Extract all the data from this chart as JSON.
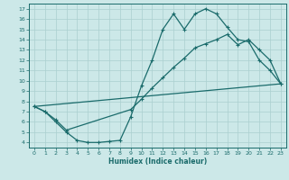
{
  "title": "",
  "xlabel": "Humidex (Indice chaleur)",
  "ylabel": "",
  "bg_color": "#cce8e8",
  "line_color": "#1a6b6b",
  "grid_color": "#aacfcf",
  "xlim": [
    -0.5,
    23.5
  ],
  "ylim": [
    3.5,
    17.5
  ],
  "xticks": [
    0,
    1,
    2,
    3,
    4,
    5,
    6,
    7,
    8,
    9,
    10,
    11,
    12,
    13,
    14,
    15,
    16,
    17,
    18,
    19,
    20,
    21,
    22,
    23
  ],
  "yticks": [
    4,
    5,
    6,
    7,
    8,
    9,
    10,
    11,
    12,
    13,
    14,
    15,
    16,
    17
  ],
  "line1_x": [
    0,
    1,
    2,
    3,
    4,
    5,
    6,
    7,
    8,
    9,
    10,
    11,
    12,
    13,
    14,
    15,
    16,
    17,
    18,
    19,
    20,
    21,
    22,
    23
  ],
  "line1_y": [
    7.5,
    7.0,
    6.0,
    5.0,
    4.2,
    4.0,
    4.0,
    4.1,
    4.2,
    6.5,
    9.5,
    12.0,
    15.0,
    16.5,
    15.0,
    16.5,
    17.0,
    16.5,
    15.2,
    14.0,
    13.8,
    12.0,
    11.0,
    9.7
  ],
  "line2_x": [
    0,
    1,
    2,
    3,
    9,
    10,
    11,
    12,
    13,
    14,
    15,
    16,
    17,
    18,
    19,
    20,
    21,
    22,
    23
  ],
  "line2_y": [
    7.5,
    7.0,
    6.2,
    5.2,
    7.2,
    8.2,
    9.3,
    10.3,
    11.3,
    12.2,
    13.2,
    13.6,
    14.0,
    14.5,
    13.5,
    14.0,
    13.0,
    12.0,
    9.7
  ],
  "line3_x": [
    0,
    23
  ],
  "line3_y": [
    7.5,
    9.7
  ]
}
